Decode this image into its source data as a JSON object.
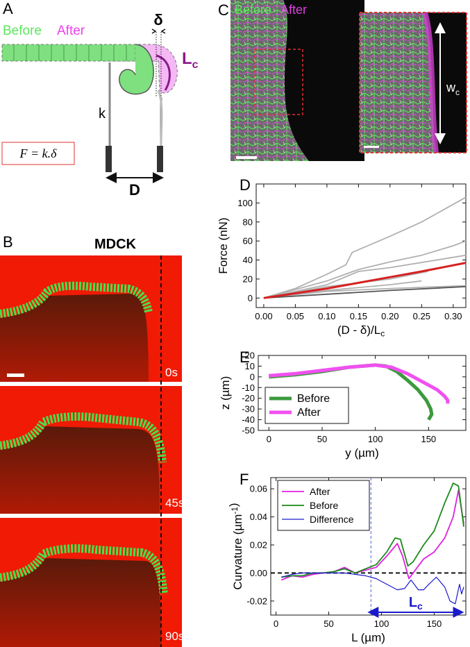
{
  "figure": {
    "A": {
      "label": "A",
      "before": "Before",
      "after": "After",
      "delta": "δ",
      "lc": "L",
      "lc_sub": "c",
      "k": "k",
      "formula": "F = k.δ",
      "d": "D"
    },
    "B": {
      "label": "B",
      "title": "MDCK",
      "times": [
        "0s",
        "45s",
        "90s"
      ]
    },
    "C": {
      "label": "C",
      "before": "Before",
      "after": "After",
      "wc": "w",
      "wc_sub": "c"
    }
  },
  "chart_data": [
    {
      "type": "line",
      "panel": "D",
      "xlabel": [
        {
          "text": "(D - δ)/L"
        },
        {
          "sub": "c"
        }
      ],
      "ylabel": [
        {
          "text": "Force (nN)"
        }
      ],
      "xlim": [
        -0.012,
        0.32
      ],
      "ylim": [
        -10,
        120
      ],
      "xticks": [
        {
          "value": 0,
          "label": "0.00"
        },
        {
          "value": 0.05,
          "label": "0.05"
        },
        {
          "value": 0.1,
          "label": "0.10"
        },
        {
          "value": 0.15,
          "label": "0.15"
        },
        {
          "value": 0.2,
          "label": "0.20"
        },
        {
          "value": 0.25,
          "label": "0.25"
        },
        {
          "value": 0.3,
          "label": "0.30"
        }
      ],
      "yticks": [
        0,
        20,
        40,
        60,
        80,
        100
      ],
      "series": [
        {
          "color": "#b0b0b0",
          "x": [
            0,
            0.05,
            0.1,
            0.13,
            0.14,
            0.2,
            0.25,
            0.32
          ],
          "values": [
            0,
            10,
            25,
            35,
            48,
            65,
            80,
            106
          ]
        },
        {
          "color": "#b0b0b0",
          "x": [
            0,
            0.1,
            0.15,
            0.2,
            0.25,
            0.3,
            0.32
          ],
          "values": [
            0,
            18,
            30,
            38,
            45,
            55,
            60
          ]
        },
        {
          "color": "#b0b0b0",
          "x": [
            0,
            0.1,
            0.15,
            0.2,
            0.32
          ],
          "values": [
            0,
            14,
            28,
            32,
            45
          ]
        },
        {
          "color": "#b0b0b0",
          "x": [
            0,
            0.1,
            0.2,
            0.26
          ],
          "values": [
            0,
            12,
            20,
            28
          ]
        },
        {
          "color": "#b0b0b0",
          "x": [
            0,
            0.1,
            0.2,
            0.25
          ],
          "values": [
            0,
            8,
            14,
            18
          ]
        },
        {
          "color": "#b0b0b0",
          "x": [
            0,
            0.1,
            0.2,
            0.32
          ],
          "values": [
            0,
            7,
            10,
            13
          ]
        },
        {
          "color": "#555555",
          "x": [
            0,
            0.1,
            0.2,
            0.32
          ],
          "values": [
            0,
            4,
            8,
            12
          ]
        },
        {
          "color": "#d62020",
          "x": [
            0,
            0.05,
            0.1,
            0.15,
            0.2,
            0.25,
            0.32
          ],
          "values": [
            0,
            5,
            10,
            16,
            22,
            28,
            37
          ]
        }
      ]
    },
    {
      "type": "line",
      "panel": "E",
      "xlabel": [
        {
          "text": "y (µm)"
        }
      ],
      "ylabel": [
        {
          "text": "z (µm)"
        }
      ],
      "xlim": [
        -10,
        185
      ],
      "ylim": [
        -50,
        20
      ],
      "xticks": [
        0,
        50,
        100,
        150
      ],
      "yticks": [
        -50,
        -40,
        -30,
        -20,
        -10,
        0,
        10,
        20
      ],
      "legend": "center left",
      "series": [
        {
          "name": "Before",
          "color": "#3c9a3c",
          "x": [
            0,
            25,
            50,
            75,
            100,
            110,
            120,
            130,
            140,
            148,
            152,
            153,
            150
          ],
          "values": [
            0,
            2,
            5,
            9,
            11,
            10,
            5,
            -3,
            -12,
            -22,
            -30,
            -35,
            -40
          ]
        },
        {
          "name": "After",
          "color": "#f050f0",
          "x": [
            0,
            25,
            50,
            75,
            100,
            115,
            130,
            145,
            158,
            165,
            168,
            168
          ],
          "values": [
            1,
            3,
            6,
            9,
            11,
            9,
            3,
            -5,
            -12,
            -18,
            -22,
            -25
          ]
        }
      ]
    },
    {
      "type": "line",
      "panel": "F",
      "xlabel": [
        {
          "text": "L (µm)"
        }
      ],
      "ylabel": [
        {
          "text": "Curvature (µm"
        },
        {
          "sup": "-1"
        },
        {
          "text": ")"
        }
      ],
      "xlim": [
        -5,
        180
      ],
      "ylim": [
        -0.03,
        0.068
      ],
      "xticks": [
        0,
        50,
        100,
        150
      ],
      "yticks": [
        -0.02,
        {
          "value": 0,
          "label": "0.00"
        },
        0.02,
        0.04,
        0.06
      ],
      "legend": "upper left",
      "hline": 0,
      "vline": 90,
      "span": {
        "x": [
          90,
          175
        ],
        "y": -0.028,
        "label": [
          {
            "text": "L"
          },
          {
            "sub": "c"
          }
        ]
      },
      "series": [
        {
          "name": "After",
          "color": "#e020e0",
          "x": [
            5,
            15,
            25,
            35,
            45,
            55,
            65,
            75,
            85,
            95,
            105,
            115,
            120,
            126,
            132,
            140,
            150,
            160,
            168,
            173,
            178
          ],
          "values": [
            -0.005,
            -0.002,
            -0.003,
            -0.001,
            0,
            0.001,
            0.004,
            0,
            0.002,
            0.004,
            0.012,
            0.021,
            0.012,
            -0.004,
            0.002,
            0.01,
            0.015,
            0.025,
            0.04,
            0.059,
            0.035
          ]
        },
        {
          "name": "Before",
          "color": "#1a8a1a",
          "x": [
            5,
            15,
            25,
            35,
            45,
            55,
            65,
            75,
            85,
            95,
            105,
            113,
            118,
            125,
            130,
            140,
            150,
            160,
            168,
            173,
            178
          ],
          "values": [
            -0.003,
            -0.002,
            -0.002,
            0,
            0,
            0.001,
            0.003,
            0,
            0.003,
            0.006,
            0.015,
            0.025,
            0.024,
            0.005,
            0.008,
            0.02,
            0.03,
            0.05,
            0.064,
            0.062,
            0.033
          ]
        },
        {
          "name": "Difference",
          "color": "#1a1acc",
          "x": [
            5,
            15,
            25,
            35,
            45,
            55,
            65,
            75,
            85,
            95,
            105,
            115,
            122,
            128,
            135,
            140,
            145,
            152,
            160,
            165,
            170,
            174,
            176,
            178
          ],
          "values": [
            -0.003,
            -0.001,
            0,
            0,
            0,
            0,
            0,
            -0.001,
            -0.002,
            -0.004,
            -0.008,
            -0.012,
            -0.011,
            -0.005,
            -0.012,
            -0.012,
            -0.008,
            -0.003,
            -0.01,
            -0.02,
            -0.022,
            -0.008,
            -0.015,
            -0.01
          ]
        }
      ]
    }
  ]
}
